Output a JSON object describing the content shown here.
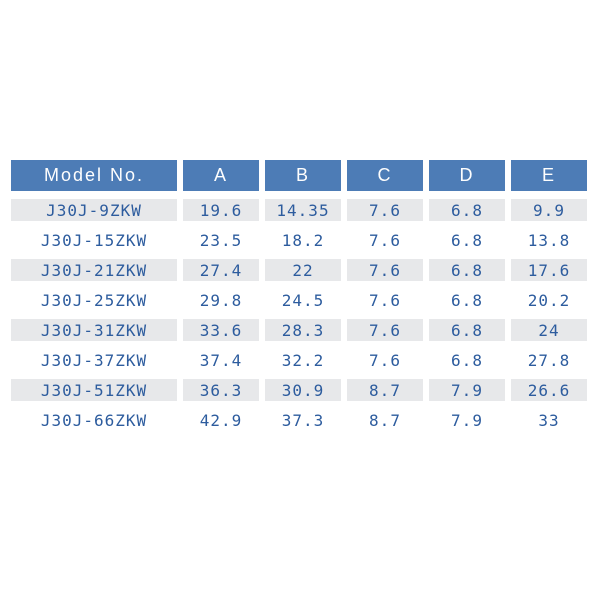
{
  "chart_data": {
    "type": "table",
    "title": "",
    "columns": [
      "Model No.",
      "A",
      "B",
      "C",
      "D",
      "E"
    ],
    "rows": [
      [
        "J30J-9ZKW",
        "19.6",
        "14.35",
        "7.6",
        "6.8",
        "9.9"
      ],
      [
        "J30J-15ZKW",
        "23.5",
        "18.2",
        "7.6",
        "6.8",
        "13.8"
      ],
      [
        "J30J-21ZKW",
        "27.4",
        "22",
        "7.6",
        "6.8",
        "17.6"
      ],
      [
        "J30J-25ZKW",
        "29.8",
        "24.5",
        "7.6",
        "6.8",
        "20.2"
      ],
      [
        "J30J-31ZKW",
        "33.6",
        "28.3",
        "7.6",
        "6.8",
        "24"
      ],
      [
        "J30J-37ZKW",
        "37.4",
        "32.2",
        "7.6",
        "6.8",
        "27.8"
      ],
      [
        "J30J-51ZKW",
        "36.3",
        "30.9",
        "8.7",
        "7.9",
        "26.6"
      ],
      [
        "J30J-66ZKW",
        "42.9",
        "37.3",
        "8.7",
        "7.9",
        "33"
      ]
    ],
    "layout": {
      "striped_rows": "odd",
      "header_position": "top",
      "grid": "cell-gaps-white"
    }
  },
  "colors": {
    "header_bg": "#4d7cb6",
    "header_text": "#fefefe",
    "stripe_bg": "#e7e8ea",
    "value_text": "#2d5c9e",
    "page_bg": "#ffffff"
  }
}
